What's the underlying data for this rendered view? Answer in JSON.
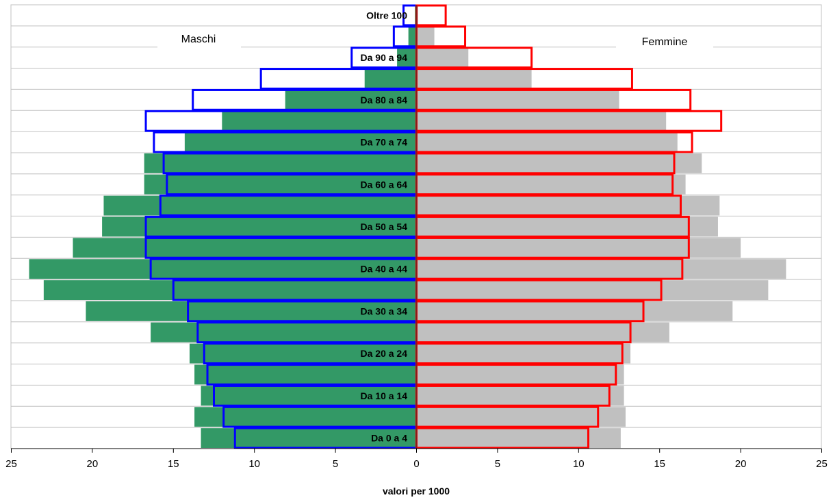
{
  "chart_data": {
    "type": "bar",
    "orientation": "horizontal-population-pyramid",
    "xlabel": "valori per 1000",
    "xlim": [
      -25,
      25
    ],
    "x_ticks": [
      -25,
      -20,
      -15,
      -10,
      -5,
      0,
      5,
      10,
      15,
      20,
      25
    ],
    "x_tick_labels": [
      "25",
      "20",
      "15",
      "10",
      "5",
      "0",
      "5",
      "10",
      "15",
      "20",
      "25"
    ],
    "grid": true,
    "left_label": "Maschi",
    "right_label": "Femmine",
    "categories": [
      "Oltre 100",
      "",
      "Da 90 a 94",
      "",
      "Da 80 a 84",
      "",
      "Da 70 a 74",
      "",
      "Da 60 a 64",
      "",
      "Da 50 a 54",
      "",
      "Da 40 a 44",
      "",
      "Da 30 a 34",
      "",
      "Da 20 a 24",
      "",
      "Da 10 a 14",
      "",
      "Da  0 a  4"
    ],
    "series": [
      {
        "side": "left",
        "style": "fill",
        "color": "#339966",
        "values": [
          0.1,
          0.5,
          1.2,
          3.2,
          8.1,
          12.0,
          14.3,
          16.8,
          16.8,
          19.3,
          19.4,
          21.2,
          23.9,
          23.0,
          20.4,
          16.4,
          14.0,
          13.7,
          13.3,
          13.7,
          13.3
        ]
      },
      {
        "side": "left",
        "style": "outline",
        "color": "#0000ff",
        "values": [
          0.8,
          1.4,
          4.0,
          9.6,
          13.8,
          16.7,
          16.2,
          15.6,
          15.4,
          15.8,
          16.7,
          16.7,
          16.4,
          15.0,
          14.1,
          13.5,
          13.1,
          12.9,
          12.5,
          11.9,
          11.2
        ]
      },
      {
        "side": "right",
        "style": "fill",
        "color": "#c0c0c0",
        "values": [
          0.1,
          1.1,
          3.2,
          7.1,
          12.5,
          15.4,
          16.1,
          17.6,
          16.6,
          18.7,
          18.6,
          20.0,
          22.8,
          21.7,
          19.5,
          15.6,
          13.2,
          12.8,
          12.8,
          12.9,
          12.6
        ]
      },
      {
        "side": "right",
        "style": "outline",
        "color": "#ff0000",
        "values": [
          1.8,
          3.0,
          7.1,
          13.3,
          16.9,
          18.8,
          17.0,
          15.9,
          15.8,
          16.3,
          16.8,
          16.8,
          16.4,
          15.1,
          14.0,
          13.2,
          12.7,
          12.3,
          11.9,
          11.2,
          10.6
        ]
      }
    ]
  }
}
